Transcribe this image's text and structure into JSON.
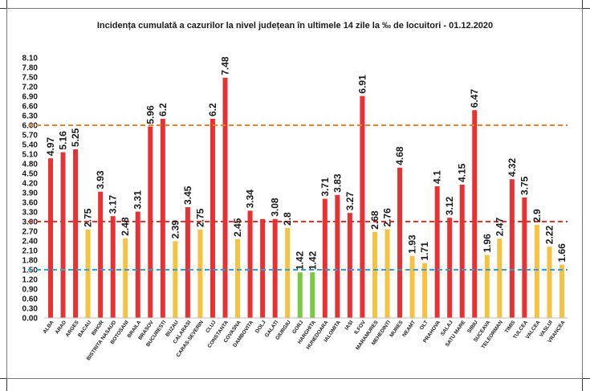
{
  "chart_data": {
    "type": "bar",
    "title": "Incidența cumulată a cazurilor la nivel județean în ultimele 14 zile la ‰ de locuitori - 01.12.2020",
    "categories": [
      "ALBA",
      "ARAD",
      "ARGES",
      "BACAU",
      "BIHOR",
      "BISTRITA NASAUD",
      "BOTOSANI",
      "BRAILA",
      "BRASOV",
      "BUCURESTI",
      "BUZAU",
      "CALARASI",
      "CARAS-SEVERIN",
      "CLUJ",
      "CONSTANTA",
      "COVASNA",
      "DAMBOVITA",
      "DOLJ",
      "GALATI",
      "GIURGIU",
      "GORJ",
      "HARGHITA",
      "HUNEDOARA",
      "IALOMITA",
      "IASI",
      "ILFOV",
      "MARAMURES",
      "MEHEDINTI",
      "MURES",
      "NEAMT",
      "OLT",
      "PRAHOVA",
      "SALAJ",
      "SATU MARE",
      "SIBIU",
      "SUCEAVA",
      "TELEORMAN",
      "TIMIS",
      "TULCEA",
      "VALCEA",
      "VASLUI",
      "VRANCEA"
    ],
    "values": [
      4.97,
      5.16,
      5.25,
      2.75,
      3.93,
      3.17,
      2.48,
      3.31,
      5.96,
      6.2,
      2.39,
      3.45,
      2.75,
      6.2,
      7.48,
      2.45,
      3.34,
      3.08,
      3.08,
      2.8,
      1.42,
      1.42,
      3.71,
      3.83,
      3.27,
      6.91,
      2.68,
      2.76,
      4.68,
      1.93,
      1.71,
      4.1,
      3.12,
      4.15,
      6.47,
      1.96,
      2.47,
      4.32,
      3.75,
      2.9,
      2.22,
      1.66
    ],
    "value_labels": [
      "4.97",
      "5.16",
      "5.25",
      "2.75",
      "3.93",
      "3.17",
      "2.48",
      "3.31",
      "5.96",
      "6.2",
      "2.39",
      "3.45",
      "2.75",
      "6.2",
      "7.48",
      "2.45",
      "3.34",
      "",
      "3.08",
      "2.8",
      "1.42",
      "1.42",
      "3.71",
      "3.83",
      "3.27",
      "6.91",
      "2.68",
      "2.76",
      "4.68",
      "1.93",
      "1.71",
      "4.1",
      "3.12",
      "4.15",
      "6.47",
      "1.96",
      "2.47",
      "4.32",
      "3.75",
      "2.9",
      "2.22",
      "1.66"
    ],
    "yticks": [
      "8.10",
      "7.80",
      "7.50",
      "7.20",
      "6.90",
      "6.60",
      "6.30",
      "6.00",
      "5.70",
      "5.40",
      "5.10",
      "4.80",
      "4.50",
      "4.20",
      "3.90",
      "3.60",
      "3.30",
      "3.00",
      "2.70",
      "2.40",
      "2.10",
      "1.80",
      "1.50",
      "1.20",
      "0.90",
      "0.60",
      "0.30",
      "0.00"
    ],
    "ylim": [
      0,
      8.1
    ],
    "reference_lines": [
      {
        "value": 6.0,
        "color": "#f07f2a"
      },
      {
        "value": 3.0,
        "color": "#e03030"
      },
      {
        "value": 1.5,
        "color": "#3a9bd8"
      }
    ],
    "color_rules": {
      "above_3": "#e63232",
      "between_1_5_and_3": "#f5c242",
      "below_1_5": "#7cc842"
    },
    "grid": false,
    "legend": "none",
    "xlabel": "",
    "ylabel": ""
  }
}
